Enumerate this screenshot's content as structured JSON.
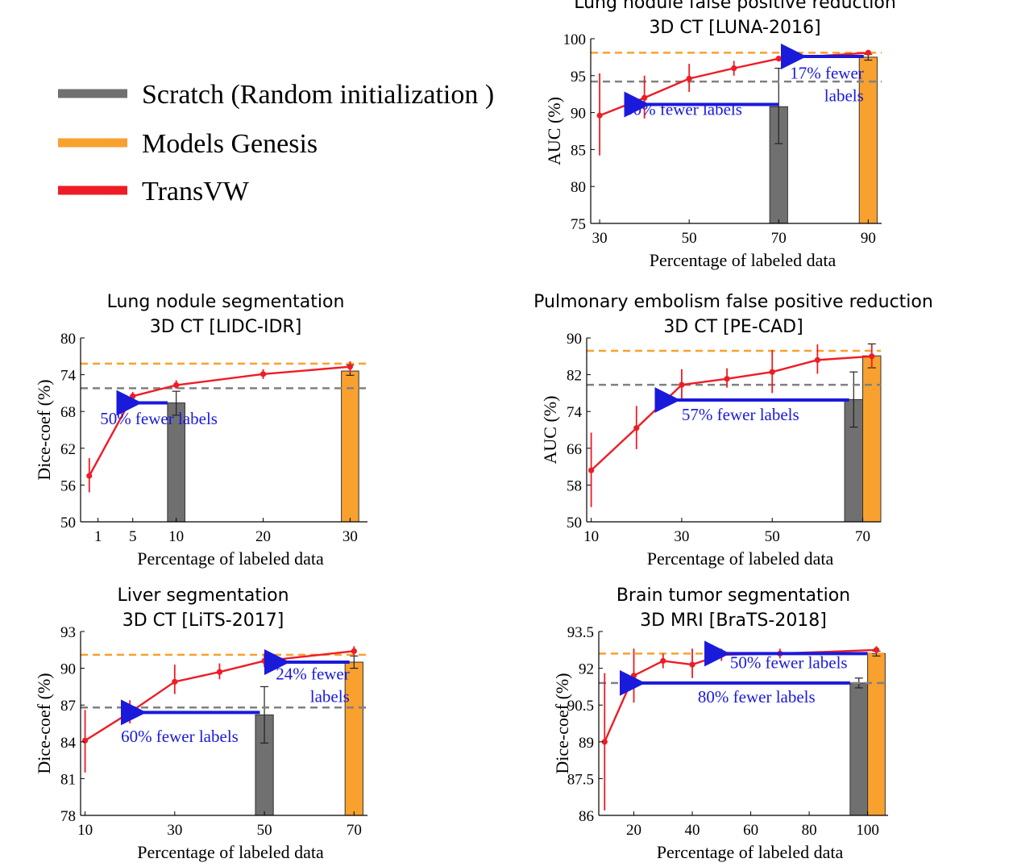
{
  "colors": {
    "scratch": "#707070",
    "genesis": "#f9a12e",
    "transvw": "#ee1c25",
    "arrow": "#1a1adb",
    "scratch_line": "#808080",
    "genesis_line": "#f9a12e"
  },
  "legend": [
    {
      "key": "scratch",
      "label": "Scratch (Random initialization )"
    },
    {
      "key": "genesis",
      "label": "Models Genesis"
    },
    {
      "key": "transvw",
      "label": "TransVW"
    }
  ],
  "chart_data": [
    {
      "id": "luna",
      "type": "line",
      "title": [
        "Lung nodule false positive reduction",
        "3D CT [LUNA-2016]"
      ],
      "xlabel": "Percentage of labeled data",
      "ylabel": "AUC (%)",
      "xlim": [
        28,
        93
      ],
      "ylim": [
        75,
        100
      ],
      "xticks": [
        30,
        50,
        70,
        90
      ],
      "xtick_labels": [
        "30",
        "50",
        "70",
        "90"
      ],
      "yticks": [
        75,
        80,
        85,
        90,
        95,
        100
      ],
      "ytick_labels": [
        "75",
        "80",
        "85",
        "90",
        "95",
        "100"
      ],
      "scratch_ref": 94.2,
      "genesis_ref": 98.1,
      "bars": [
        {
          "key": "scratch",
          "x": 70,
          "value": 90.8,
          "err": [
            85.8,
            96.0
          ]
        },
        {
          "key": "genesis",
          "x": 90,
          "value": 97.5,
          "err": [
            97.1,
            97.9
          ]
        }
      ],
      "bar_width": 4,
      "transvw": {
        "x": [
          30,
          40,
          50,
          60,
          70,
          90
        ],
        "y": [
          89.6,
          92.0,
          94.6,
          96.0,
          97.3,
          98.1
        ],
        "err_low": [
          84.2,
          89.2,
          92.8,
          95.0,
          96.9,
          97.8
        ],
        "err_high": [
          95.3,
          95.0,
          96.6,
          97.0,
          97.7,
          98.4
        ]
      },
      "annotations": [
        {
          "lines": [
            "50% fewer labels"
          ],
          "arrow": [
            70,
            38,
            91.1
          ],
          "text_at": [
            50,
            89.7
          ],
          "anchor": "start_offset"
        },
        {
          "lines": [
            "17% fewer",
            "labels"
          ],
          "arrow": [
            89,
            73,
            97.6
          ],
          "text_at": [
            89,
            94.6
          ],
          "anchor": "end"
        }
      ]
    },
    {
      "id": "lidc",
      "type": "line",
      "title": [
        "Lung nodule segmentation",
        "3D CT [LIDC-IDR]"
      ],
      "xlabel": "Percentage of labeled data",
      "ylabel": "Dice-coef (%)",
      "xlim": [
        -1,
        32
      ],
      "ylim": [
        50,
        80
      ],
      "xticks": [
        1,
        5,
        10,
        20,
        30
      ],
      "xtick_labels": [
        "1",
        "5",
        "10",
        "20",
        "30"
      ],
      "yticks": [
        50,
        56,
        62,
        68,
        74,
        80
      ],
      "ytick_labels": [
        "50",
        "56",
        "62",
        "68",
        "74",
        "80"
      ],
      "scratch_ref": 71.8,
      "genesis_ref": 75.8,
      "bars": [
        {
          "key": "scratch",
          "x": 10,
          "value": 69.4,
          "err": [
            67.4,
            71.3
          ]
        },
        {
          "key": "genesis",
          "x": 30,
          "value": 74.6,
          "err": [
            73.9,
            75.6
          ]
        }
      ],
      "bar_width": 2,
      "transvw": {
        "x": [
          0,
          5,
          10,
          20,
          30
        ],
        "y": [
          57.5,
          70.5,
          72.3,
          74.1,
          75.3
        ],
        "err_low": [
          54.8,
          69.8,
          71.7,
          73.3,
          74.3
        ],
        "err_high": [
          60.4,
          71.2,
          73.1,
          74.9,
          76.2
        ]
      },
      "annotations": [
        {
          "lines": [
            "50% fewer labels"
          ],
          "arrow": [
            9,
            4.4,
            69.4
          ],
          "text_at": [
            8,
            65.9
          ],
          "anchor": "middle"
        }
      ]
    },
    {
      "id": "pecad",
      "type": "line",
      "title": [
        "Pulmonary embolism false positive reduction",
        "3D CT [PE-CAD]"
      ],
      "xlabel": "Percentage of labeled data",
      "ylabel": "AUC (%)",
      "xlim": [
        9,
        74
      ],
      "ylim": [
        50,
        90
      ],
      "xticks": [
        10,
        30,
        50,
        70
      ],
      "xtick_labels": [
        "10",
        "30",
        "50",
        "70"
      ],
      "yticks": [
        50,
        58,
        66,
        74,
        82,
        90
      ],
      "ytick_labels": [
        "50",
        "58",
        "66",
        "74",
        "82",
        "90"
      ],
      "scratch_ref": 79.8,
      "genesis_ref": 87.2,
      "bars": [
        {
          "key": "scratch",
          "x": 68,
          "value": 76.6,
          "err": [
            70.6,
            82.6
          ]
        },
        {
          "key": "genesis",
          "x": 72,
          "value": 86.1,
          "err": [
            83.5,
            88.7
          ]
        }
      ],
      "bar_width": 4,
      "transvw": {
        "x": [
          10,
          20,
          30,
          40,
          50,
          60,
          72
        ],
        "y": [
          61.2,
          70.4,
          79.8,
          81.1,
          82.6,
          85.2,
          86.0
        ],
        "err_low": [
          53.2,
          65.8,
          76.8,
          79.2,
          78.0,
          82.2,
          83.4
        ],
        "err_high": [
          69.4,
          75.2,
          83.2,
          83.4,
          87.4,
          88.6,
          88.6
        ]
      },
      "annotations": [
        {
          "lines": [
            "57% fewer labels"
          ],
          "arrow": [
            67,
            26.5,
            76.5
          ],
          "text_at": [
            30,
            72.1
          ],
          "anchor": "start"
        }
      ]
    },
    {
      "id": "lits",
      "type": "line",
      "title": [
        "Liver segmentation",
        "3D CT [LiTS-2017]"
      ],
      "xlabel": "Percentage of labeled data",
      "ylabel": "Dice-coef (%)",
      "xlim": [
        9,
        73
      ],
      "ylim": [
        78,
        93
      ],
      "xticks": [
        10,
        30,
        50,
        70
      ],
      "xtick_labels": [
        "10",
        "30",
        "50",
        "70"
      ],
      "yticks": [
        78,
        81,
        84,
        87,
        90,
        93
      ],
      "ytick_labels": [
        "78",
        "81",
        "84",
        "87",
        "90",
        "93"
      ],
      "scratch_ref": 86.8,
      "genesis_ref": 91.1,
      "bars": [
        {
          "key": "scratch",
          "x": 50,
          "value": 86.2,
          "err": [
            83.9,
            88.5
          ]
        },
        {
          "key": "genesis",
          "x": 70,
          "value": 90.5,
          "err": [
            90.0,
            91.0
          ]
        }
      ],
      "bar_width": 4,
      "transvw": {
        "x": [
          10,
          20,
          30,
          40,
          50,
          70
        ],
        "y": [
          84.1,
          86.4,
          88.9,
          89.7,
          90.6,
          91.4
        ],
        "err_low": [
          81.5,
          85.5,
          87.9,
          89.1,
          90.1,
          91.0
        ],
        "err_high": [
          86.6,
          87.4,
          90.3,
          90.4,
          91.2,
          91.8
        ]
      },
      "annotations": [
        {
          "lines": [
            "60% fewer labels"
          ],
          "arrow": [
            49,
            20.5,
            86.4
          ],
          "text_at": [
            18,
            84.0
          ],
          "anchor": "start"
        },
        {
          "lines": [
            "24% fewer",
            "labels"
          ],
          "arrow": [
            69,
            52.5,
            90.5
          ],
          "text_at": [
            69,
            89.1
          ],
          "anchor": "end"
        }
      ]
    },
    {
      "id": "brats",
      "type": "line",
      "title": [
        "Brain tumor segmentation",
        "3D MRI [BraTS-2018]"
      ],
      "xlabel": "Percentage of labeled data",
      "ylabel": "Dice-coef (%)",
      "xlim": [
        8,
        107
      ],
      "ylim": [
        86,
        93.5
      ],
      "xticks": [
        20,
        40,
        60,
        80,
        100
      ],
      "xtick_labels": [
        "20",
        "40",
        "60",
        "80",
        "100"
      ],
      "yticks": [
        86,
        87.5,
        89,
        90.5,
        92,
        93.5
      ],
      "ytick_labels": [
        "86",
        "87.5",
        "89",
        "90.5",
        "92",
        "93.5"
      ],
      "scratch_ref": 91.4,
      "genesis_ref": 92.6,
      "bars": [
        {
          "key": "scratch",
          "x": 97,
          "value": 91.4,
          "err": [
            91.2,
            91.6
          ]
        },
        {
          "key": "genesis",
          "x": 103,
          "value": 92.6,
          "err": [
            92.5,
            92.7
          ]
        }
      ],
      "bar_width": 6,
      "transvw": {
        "x": [
          10,
          20,
          30,
          40,
          50,
          70,
          103
        ],
        "y": [
          89.0,
          91.7,
          92.3,
          92.15,
          92.55,
          92.6,
          92.75
        ],
        "err_low": [
          86.2,
          90.6,
          92.0,
          91.6,
          92.3,
          92.4,
          92.6
        ],
        "err_high": [
          91.8,
          92.8,
          92.6,
          92.8,
          92.8,
          92.8,
          92.9
        ]
      },
      "annotations": [
        {
          "lines": [
            "50% fewer labels"
          ],
          "arrow": [
            100,
            48,
            92.6
          ],
          "text_at": [
            73,
            92.0
          ],
          "anchor": "middle"
        },
        {
          "lines": [
            "80% fewer labels"
          ],
          "arrow": [
            94,
            19,
            91.4
          ],
          "text_at": [
            62,
            90.6
          ],
          "anchor": "middle"
        }
      ]
    }
  ]
}
